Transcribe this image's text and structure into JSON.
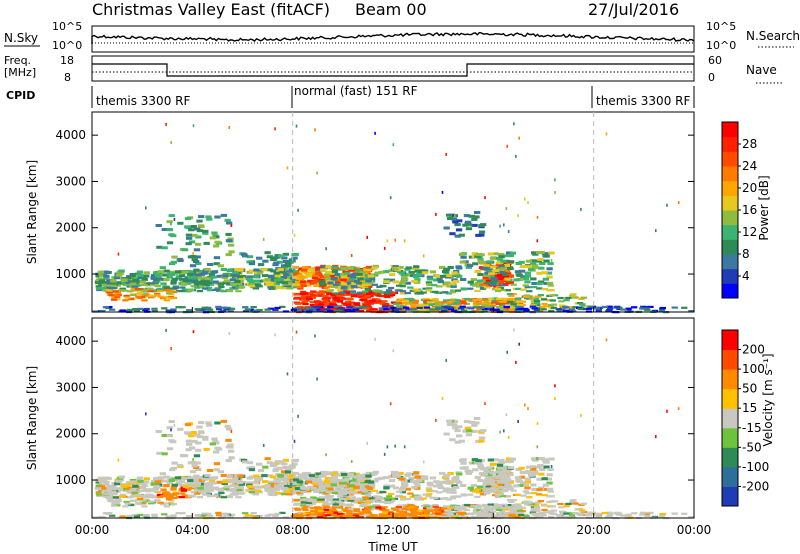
{
  "header": {
    "title": "Christmas Valley East (fitACF)",
    "beam": "Beam 00",
    "date": "27/Jul/2016"
  },
  "panels": {
    "nsky": {
      "label": "N.Sky",
      "y_ticks": [
        "10^5",
        "10^0"
      ],
      "right_ticks": [
        "10^5",
        "10^0"
      ],
      "right_label": "N.Search"
    },
    "freq": {
      "label_top": "Freq.",
      "label_unit": "[MHz]",
      "y_ticks": [
        "18",
        "8"
      ],
      "right_ticks": [
        "60",
        "0"
      ],
      "right_label": "Nave"
    },
    "cpid": {
      "label": "CPID",
      "segments": [
        "themis 3300 RF",
        "normal (fast) 151 RF",
        "themis 3300 RF"
      ]
    }
  },
  "chart_data": [
    {
      "type": "heatmap",
      "name": "power",
      "ylabel": "Slant Range [km]",
      "y_ticks": [
        1000,
        2000,
        3000,
        4000
      ],
      "ylim": [
        180,
        4500
      ],
      "colorbar": {
        "label": "Power [dB]",
        "ticks": [
          "4",
          "8",
          "12",
          "16",
          "20",
          "24",
          "28"
        ],
        "colors": [
          "#0000ff",
          "#1e3cb4",
          "#3c78a0",
          "#2e8b57",
          "#3cb371",
          "#8fbc3f",
          "#e6c81e",
          "#ffa500",
          "#ff7a00",
          "#ff4a00",
          "#ff2000",
          "#ff0000"
        ]
      },
      "mode_boundaries": [
        "08:00",
        "20:00"
      ]
    },
    {
      "type": "heatmap",
      "name": "velocity",
      "ylabel": "Slant Range [km]",
      "xlabel": "Time UT",
      "x_ticks": [
        "00:00",
        "04:00",
        "08:00",
        "12:00",
        "16:00",
        "20:00",
        "00:00"
      ],
      "y_ticks": [
        1000,
        2000,
        3000,
        4000
      ],
      "ylim": [
        180,
        4500
      ],
      "colorbar": {
        "label": "Velocity [m s⁻¹]",
        "ticks": [
          "200",
          "100",
          "50",
          "15",
          "-15",
          "-50",
          "-100",
          "-200"
        ],
        "colors": [
          "#1e3cb4",
          "#2e6e9a",
          "#2e8b57",
          "#6dc43c",
          "#c8c8c0",
          "#ffc000",
          "#ff8a00",
          "#ff4a00",
          "#ff0000"
        ]
      },
      "mode_boundaries": [
        "08:00",
        "20:00"
      ]
    }
  ]
}
